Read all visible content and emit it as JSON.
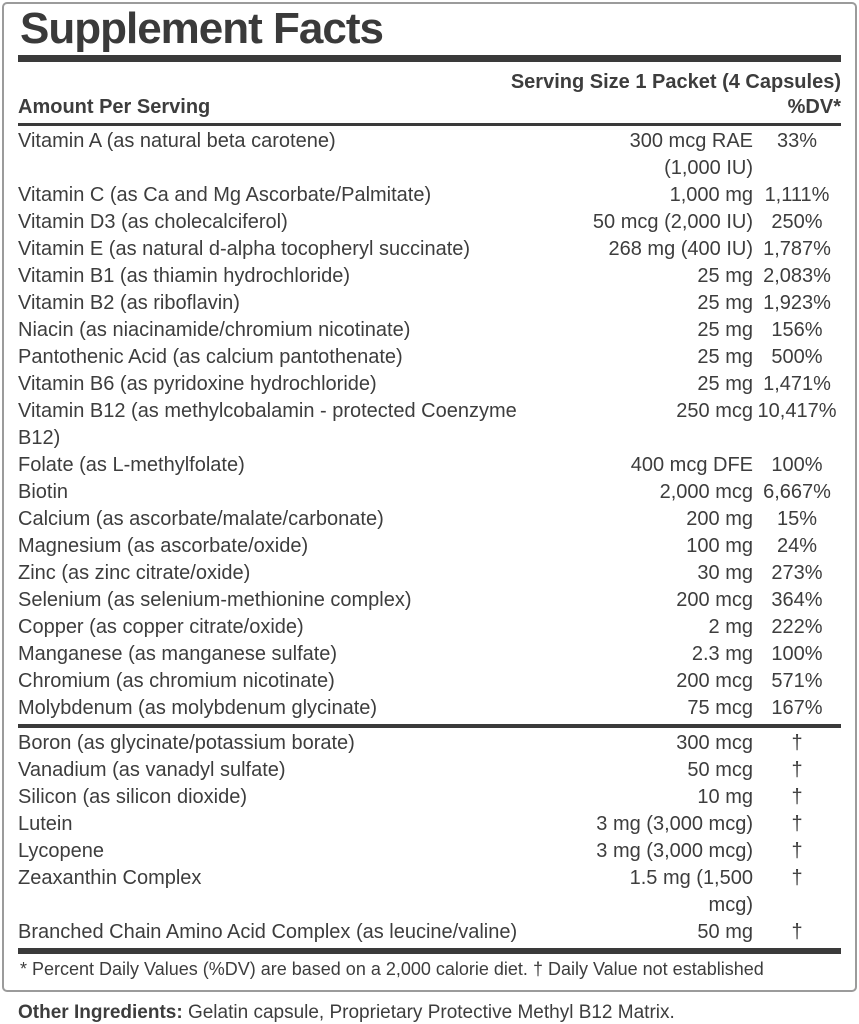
{
  "label": {
    "title": "Supplement Facts",
    "serving_size": "Serving Size 1 Packet (4 Capsules)",
    "amount_header": "Amount Per Serving",
    "dv_header": "%DV*",
    "main_rows": [
      {
        "name": "Vitamin A (as natural beta carotene)",
        "amount": "300 mcg RAE (1,000 IU)",
        "dv": "33%"
      },
      {
        "name": "Vitamin C (as Ca and Mg Ascorbate/Palmitate)",
        "amount": "1,000 mg",
        "dv": "1,111%"
      },
      {
        "name": "Vitamin D3 (as cholecalciferol)",
        "amount": "50 mcg (2,000 IU)",
        "dv": "250%"
      },
      {
        "name": "Vitamin E (as natural d-alpha tocopheryl succinate)",
        "amount": "268 mg (400 IU)",
        "dv": "1,787%"
      },
      {
        "name": "Vitamin B1 (as thiamin hydrochloride)",
        "amount": "25 mg",
        "dv": "2,083%"
      },
      {
        "name": "Vitamin B2 (as riboflavin)",
        "amount": "25 mg",
        "dv": "1,923%"
      },
      {
        "name": "Niacin (as niacinamide/chromium nicotinate)",
        "amount": "25 mg",
        "dv": "156%"
      },
      {
        "name": "Pantothenic Acid (as calcium pantothenate)",
        "amount": "25 mg",
        "dv": "500%"
      },
      {
        "name": "Vitamin B6 (as pyridoxine hydrochloride)",
        "amount": "25 mg",
        "dv": "1,471%"
      },
      {
        "name": "Vitamin B12 (as methylcobalamin - protected Coenzyme B12)",
        "amount": "250 mcg",
        "dv": "10,417%"
      },
      {
        "name": "Folate (as L-methylfolate)",
        "amount": "400 mcg DFE",
        "dv": "100%"
      },
      {
        "name": "Biotin",
        "amount": "2,000 mcg",
        "dv": "6,667%"
      },
      {
        "name": "Calcium (as ascorbate/malate/carbonate)",
        "amount": "200 mg",
        "dv": "15%"
      },
      {
        "name": "Magnesium (as ascorbate/oxide)",
        "amount": "100 mg",
        "dv": "24%"
      },
      {
        "name": "Zinc (as zinc citrate/oxide)",
        "amount": "30 mg",
        "dv": "273%"
      },
      {
        "name": "Selenium (as selenium-methionine complex)",
        "amount": "200 mcg",
        "dv": "364%"
      },
      {
        "name": "Copper (as copper citrate/oxide)",
        "amount": "2 mg",
        "dv": "222%"
      },
      {
        "name": "Manganese (as manganese sulfate)",
        "amount": "2.3 mg",
        "dv": "100%"
      },
      {
        "name": "Chromium (as chromium nicotinate)",
        "amount": "200 mcg",
        "dv": "571%"
      },
      {
        "name": "Molybdenum (as molybdenum glycinate)",
        "amount": "75 mcg",
        "dv": "167%"
      }
    ],
    "secondary_rows": [
      {
        "name": "Boron (as glycinate/potassium borate)",
        "amount": "300 mcg",
        "dv": "†"
      },
      {
        "name": "Vanadium (as vanadyl sulfate)",
        "amount": "50 mcg",
        "dv": "†"
      },
      {
        "name": "Silicon (as silicon dioxide)",
        "amount": "10 mg",
        "dv": "†"
      },
      {
        "name": "Lutein",
        "amount": "3 mg (3,000 mcg)",
        "dv": "†"
      },
      {
        "name": "Lycopene",
        "amount": "3 mg (3,000 mcg)",
        "dv": "†"
      },
      {
        "name": "Zeaxanthin Complex",
        "amount": "1.5 mg (1,500 mcg)",
        "dv": "†"
      },
      {
        "name": "Branched Chain Amino Acid Complex (as leucine/valine)",
        "amount": "50 mg",
        "dv": "†"
      }
    ],
    "footnote": "* Percent Daily Values (%DV) are based on a 2,000 calorie diet. † Daily Value not established"
  },
  "other_ingredients": {
    "label": "Other Ingredients:",
    "text": " Gelatin capsule, Proprietary Protective Methyl B12 Matrix."
  },
  "colors": {
    "text": "#3d3d3d",
    "rule": "#3a3a3a",
    "border": "#9b9b9b",
    "background": "#ffffff"
  }
}
